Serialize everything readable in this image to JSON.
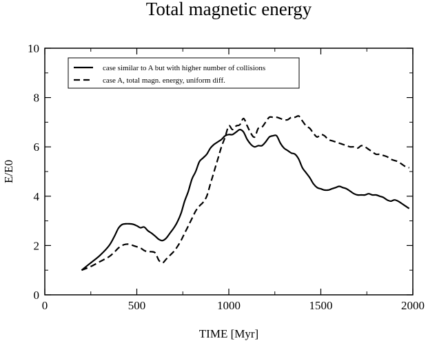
{
  "chart_data": {
    "type": "line",
    "title": "Total magnetic energy",
    "xlabel": "TIME [Myr]",
    "ylabel": "E/E0",
    "xlim": [
      0,
      2000
    ],
    "ylim": [
      0,
      10
    ],
    "xticks": [
      "0",
      "500",
      "1000",
      "1500",
      "2000"
    ],
    "yticks": [
      "0",
      "2",
      "4",
      "6",
      "8",
      "10"
    ],
    "grid": false,
    "legend_position": "top-left",
    "series": [
      {
        "name": "case similar to A but with higher number of collisions",
        "style": "solid",
        "color": "#000000",
        "x": [
          200,
          250,
          300,
          350,
          380,
          400,
          420,
          440,
          460,
          480,
          500,
          520,
          540,
          560,
          580,
          600,
          620,
          640,
          660,
          680,
          700,
          720,
          740,
          760,
          780,
          800,
          820,
          840,
          860,
          880,
          900,
          920,
          940,
          960,
          980,
          1000,
          1020,
          1040,
          1060,
          1080,
          1100,
          1120,
          1140,
          1160,
          1180,
          1200,
          1220,
          1240,
          1260,
          1280,
          1300,
          1320,
          1340,
          1360,
          1380,
          1400,
          1420,
          1440,
          1460,
          1480,
          1500,
          1520,
          1540,
          1560,
          1580,
          1600,
          1620,
          1640,
          1660,
          1680,
          1700,
          1720,
          1740,
          1760,
          1780,
          1800,
          1820,
          1840,
          1860,
          1880,
          1900,
          1920,
          1940,
          1960,
          1980
        ],
        "values": [
          1.0,
          1.3,
          1.6,
          2.0,
          2.4,
          2.7,
          2.85,
          2.88,
          2.88,
          2.86,
          2.8,
          2.72,
          2.75,
          2.6,
          2.5,
          2.38,
          2.25,
          2.2,
          2.3,
          2.5,
          2.7,
          2.95,
          3.3,
          3.8,
          4.2,
          4.7,
          5.0,
          5.4,
          5.55,
          5.7,
          5.95,
          6.1,
          6.2,
          6.3,
          6.45,
          6.5,
          6.5,
          6.6,
          6.7,
          6.6,
          6.3,
          6.1,
          6.0,
          6.05,
          6.05,
          6.2,
          6.4,
          6.45,
          6.45,
          6.15,
          5.95,
          5.85,
          5.75,
          5.7,
          5.5,
          5.15,
          4.95,
          4.75,
          4.5,
          4.35,
          4.3,
          4.25,
          4.25,
          4.3,
          4.35,
          4.4,
          4.35,
          4.3,
          4.2,
          4.1,
          4.05,
          4.05,
          4.05,
          4.1,
          4.05,
          4.05,
          4.0,
          3.95,
          3.85,
          3.8,
          3.85,
          3.8,
          3.7,
          3.6,
          3.5
        ]
      },
      {
        "name": "case A, total magn. energy, uniform diff.",
        "style": "dashed",
        "color": "#000000",
        "x": [
          200,
          250,
          300,
          350,
          380,
          400,
          420,
          440,
          460,
          480,
          500,
          520,
          540,
          560,
          580,
          600,
          620,
          640,
          660,
          680,
          700,
          720,
          740,
          760,
          780,
          800,
          820,
          840,
          860,
          880,
          900,
          920,
          940,
          960,
          980,
          1000,
          1020,
          1040,
          1060,
          1080,
          1100,
          1120,
          1140,
          1160,
          1180,
          1200,
          1220,
          1240,
          1260,
          1280,
          1300,
          1320,
          1340,
          1360,
          1380,
          1400,
          1420,
          1440,
          1460,
          1480,
          1500,
          1520,
          1540,
          1560,
          1580,
          1600,
          1620,
          1640,
          1660,
          1680,
          1700,
          1720,
          1740,
          1760,
          1780,
          1800,
          1820,
          1840,
          1860,
          1880,
          1900,
          1920,
          1940,
          1960,
          1980
        ],
        "values": [
          1.0,
          1.15,
          1.35,
          1.55,
          1.75,
          1.9,
          2.0,
          2.05,
          2.05,
          2.0,
          1.95,
          1.9,
          1.8,
          1.75,
          1.75,
          1.7,
          1.4,
          1.3,
          1.45,
          1.6,
          1.75,
          1.95,
          2.2,
          2.5,
          2.8,
          3.1,
          3.4,
          3.6,
          3.75,
          4.0,
          4.5,
          5.0,
          5.5,
          6.0,
          6.4,
          6.85,
          6.7,
          6.85,
          6.9,
          7.15,
          6.85,
          6.55,
          6.4,
          6.75,
          6.8,
          7.0,
          7.2,
          7.2,
          7.2,
          7.15,
          7.1,
          7.1,
          7.2,
          7.2,
          7.25,
          7.05,
          6.85,
          6.75,
          6.55,
          6.4,
          6.5,
          6.45,
          6.3,
          6.25,
          6.2,
          6.15,
          6.1,
          6.05,
          6.0,
          6.0,
          5.95,
          6.05,
          6.0,
          5.9,
          5.8,
          5.7,
          5.7,
          5.65,
          5.6,
          5.5,
          5.45,
          5.4,
          5.3,
          5.2,
          5.15
        ]
      }
    ]
  }
}
